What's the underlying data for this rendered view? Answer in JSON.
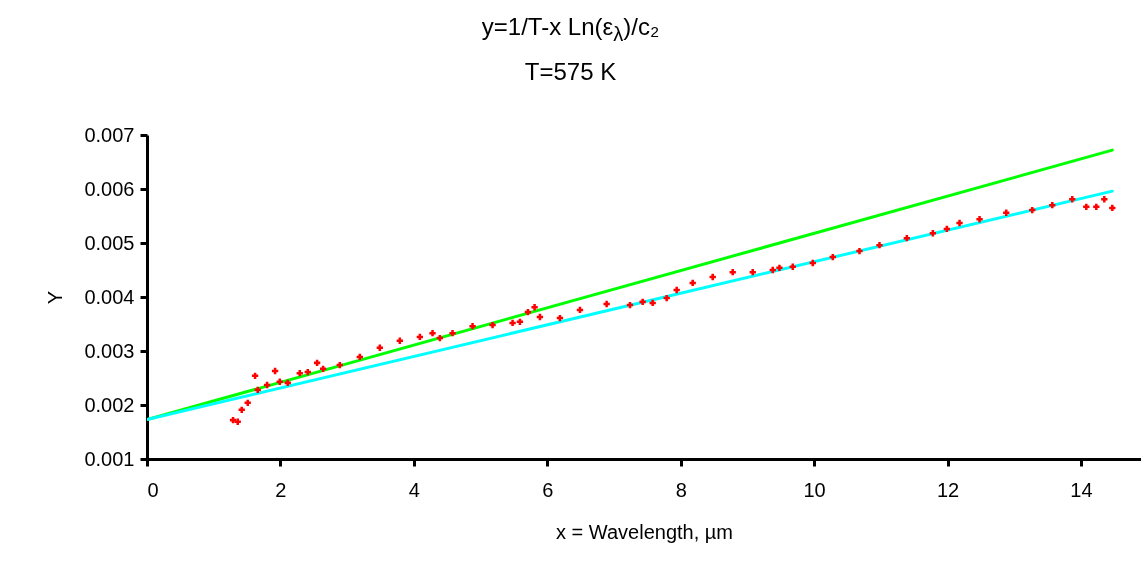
{
  "chart_data": {
    "type": "scatter",
    "title": "y=1/T-x Ln(ε$_{λ}$)/c₂",
    "subtitle": "T=575 K",
    "xlabel": "x = Wavelength, µm",
    "ylabel": "Y",
    "xlim": [
      0,
      14.9
    ],
    "xticks": [
      0,
      2,
      4,
      6,
      8,
      10,
      12,
      14
    ],
    "ylim": [
      0.001,
      0.007
    ],
    "yticks": [
      0.001,
      0.002,
      0.003,
      0.004,
      0.005,
      0.006,
      0.007
    ],
    "marker": "cross",
    "series": [
      {
        "type": "line",
        "marker": "none",
        "color": "#00ff00",
        "x": [
          0,
          14.47
        ],
        "values": [
          0.00173,
          0.00672
        ]
      },
      {
        "type": "line",
        "marker": "none",
        "color": "#00ffff",
        "x": [
          0,
          14.47
        ],
        "values": [
          0.00173,
          0.00596
        ]
      },
      {
        "color": "#ff0000",
        "x": [
          1.29,
          1.36,
          1.42,
          1.51,
          1.62,
          1.66,
          1.8,
          1.92,
          1.99,
          2.11,
          2.29,
          2.41,
          2.55,
          2.64,
          2.89,
          3.19,
          3.49,
          3.79,
          4.09,
          4.28,
          4.39,
          4.58,
          4.88,
          5.18,
          5.48,
          5.59,
          5.71,
          5.81,
          5.89,
          6.19,
          6.49,
          6.89,
          7.24,
          7.43,
          7.58,
          7.79,
          7.94,
          8.18,
          8.48,
          8.78,
          9.08,
          9.38,
          9.48,
          9.68,
          9.98,
          10.28,
          10.68,
          10.98,
          11.39,
          11.78,
          11.99,
          12.18,
          12.48,
          12.88,
          13.27,
          13.57,
          13.87,
          14.08,
          14.23,
          14.35,
          14.47
        ],
        "values": [
          0.00172,
          0.00169,
          0.00191,
          0.00204,
          0.00254,
          0.00228,
          0.00237,
          0.00263,
          0.00243,
          0.00241,
          0.00259,
          0.00261,
          0.00278,
          0.00267,
          0.00274,
          0.00289,
          0.00306,
          0.00319,
          0.00326,
          0.00333,
          0.00324,
          0.00333,
          0.00346,
          0.00348,
          0.00352,
          0.00354,
          0.00372,
          0.00381,
          0.00363,
          0.00361,
          0.00376,
          0.00387,
          0.00385,
          0.00391,
          0.00389,
          0.00398,
          0.00413,
          0.00426,
          0.00437,
          0.00446,
          0.00446,
          0.0045,
          0.00454,
          0.00456,
          0.00463,
          0.00474,
          0.00485,
          0.00496,
          0.00509,
          0.00518,
          0.00526,
          0.00537,
          0.00544,
          0.00556,
          0.00561,
          0.0057,
          0.00581,
          0.00567,
          0.00567,
          0.00581,
          0.00565
        ]
      }
    ]
  }
}
